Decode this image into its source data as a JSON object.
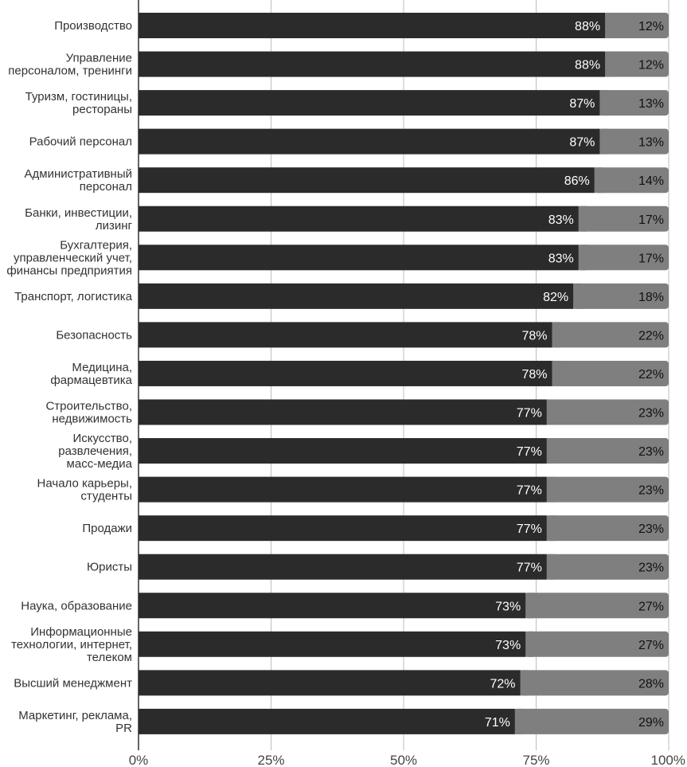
{
  "chart_data": {
    "type": "bar",
    "orientation": "horizontal",
    "stacked": true,
    "percent_stacked": true,
    "categories": [
      "Производство",
      "Управление\nперсоналом, тренинги",
      "Туризм, гостиницы,\nрестораны",
      "Рабочий персонал",
      "Административный\nперсонал",
      "Банки, инвестиции,\nлизинг",
      "Бухгалтерия,\nуправленческий учет,\nфинансы предприятия",
      "Транспорт, логистика",
      "Безопасность",
      "Медицина,\nфармацевтика",
      "Строительство,\nнедвижимость",
      "Искусство,\nразвлечения,\nмасс-медиа",
      "Начало карьеры,\nстуденты",
      "Продажи",
      "Юристы",
      "Наука, образование",
      "Информационные\nтехнологии, интернет,\nтелеком",
      "Высший менеджмент",
      "Маркетинг, реклама,\nPR"
    ],
    "series": [
      {
        "values": [
          88,
          88,
          87,
          87,
          86,
          83,
          83,
          82,
          78,
          78,
          77,
          77,
          77,
          77,
          77,
          73,
          73,
          72,
          71
        ],
        "color": "#2b2b2b"
      },
      {
        "values": [
          12,
          12,
          13,
          13,
          14,
          17,
          17,
          18,
          22,
          22,
          23,
          23,
          23,
          23,
          23,
          27,
          27,
          28,
          29
        ],
        "color": "#7f7f7f"
      }
    ],
    "xlim": [
      0,
      100
    ],
    "x_ticks": [
      "0%",
      "25%",
      "50%",
      "75%",
      "100%"
    ],
    "grid": true,
    "data_labels": true,
    "legend": "none"
  }
}
